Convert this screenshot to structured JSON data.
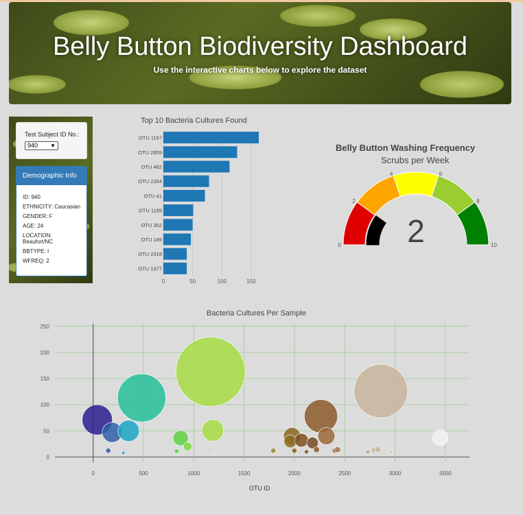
{
  "header": {
    "title": "Belly Button Biodiversity Dashboard",
    "subtitle": "Use the interactive charts below to explore the dataset"
  },
  "selector": {
    "label": "Test Subject ID No.:",
    "value": "940"
  },
  "demographics": {
    "heading": "Demographic Info",
    "rows": [
      "ID: 940",
      "ETHNICITY: Caucasian",
      "GENDER: F",
      "AGE: 24",
      "LOCATION: Beaufort/NC",
      "BBTYPE: I",
      "WFREQ: 2"
    ]
  },
  "colors": {
    "bar": "#1f77b4",
    "panel_header": "#337ab7"
  },
  "gauge": {
    "title": "Belly Button Washing Frequency",
    "subtitle": "Scrubs per Week",
    "value": "2",
    "ticks": [
      "0",
      "2",
      "4",
      "6",
      "8",
      "10"
    ],
    "segment_colors": [
      "#e00000",
      "#ffa500",
      "#ffff00",
      "#9acd32",
      "#008000"
    ]
  },
  "chart_data": [
    {
      "type": "bar",
      "orientation": "horizontal",
      "title": "Top 10 Bacteria Cultures Found",
      "categories": [
        "OTU 1167",
        "OTU 2859",
        "OTU 482",
        "OTU 2264",
        "OTU 41",
        "OTU 1189",
        "OTU 352",
        "OTU 189",
        "OTU 2318",
        "OTU 1977"
      ],
      "values": [
        163,
        126,
        113,
        78,
        71,
        51,
        50,
        47,
        40,
        40
      ],
      "xticks": [
        "0",
        "50",
        "100",
        "150"
      ],
      "xlim": [
        0,
        170
      ]
    },
    {
      "type": "scatter",
      "title": "Bacteria Cultures Per Sample",
      "xlabel": "OTU ID",
      "xticks": [
        "0",
        "500",
        "1000",
        "1500",
        "2000",
        "2500",
        "3000",
        "3500"
      ],
      "yticks": [
        "0",
        "50",
        "100",
        "150",
        "200",
        "250"
      ],
      "xlim": [
        -380,
        3740
      ],
      "ylim": [
        -10,
        255
      ],
      "points": [
        {
          "x": 41,
          "y": 71,
          "c": "#2a1f8f"
        },
        {
          "x": 189,
          "y": 47,
          "c": "#2f5fa8"
        },
        {
          "x": 352,
          "y": 50,
          "c": "#1ca6c4"
        },
        {
          "x": 482,
          "y": 113,
          "c": "#25c09a"
        },
        {
          "x": 1167,
          "y": 163,
          "c": "#a8dc45"
        },
        {
          "x": 1189,
          "y": 51,
          "c": "#a8dc45"
        },
        {
          "x": 870,
          "y": 36,
          "c": "#5fd144"
        },
        {
          "x": 940,
          "y": 20,
          "c": "#7ed83e"
        },
        {
          "x": 2264,
          "y": 78,
          "c": "#8b5a2b"
        },
        {
          "x": 2318,
          "y": 40,
          "c": "#9c6a3a"
        },
        {
          "x": 1977,
          "y": 40,
          "c": "#8e6420"
        },
        {
          "x": 1960,
          "y": 30,
          "c": "#8b6b1e"
        },
        {
          "x": 2070,
          "y": 32,
          "c": "#7f4f21"
        },
        {
          "x": 2180,
          "y": 27,
          "c": "#7a4a22"
        },
        {
          "x": 2859,
          "y": 126,
          "c": "#c8b49c"
        },
        {
          "x": 3450,
          "y": 37,
          "c": "#f2f2f2"
        },
        {
          "x": 150,
          "y": 12,
          "c": "#2f5fa8"
        },
        {
          "x": 300,
          "y": 8,
          "c": "#1ca6c4"
        },
        {
          "x": 830,
          "y": 11,
          "c": "#5fd144"
        },
        {
          "x": 1200,
          "y": 6,
          "c": "#c6e27a"
        },
        {
          "x": 1790,
          "y": 12,
          "c": "#9b8a30"
        },
        {
          "x": 2000,
          "y": 12,
          "c": "#8e6420"
        },
        {
          "x": 2120,
          "y": 10,
          "c": "#7f4f21"
        },
        {
          "x": 2220,
          "y": 14,
          "c": "#8b5a2b"
        },
        {
          "x": 2400,
          "y": 12,
          "c": "#a0754a"
        },
        {
          "x": 2430,
          "y": 14,
          "c": "#a0754a"
        },
        {
          "x": 2730,
          "y": 10,
          "c": "#c0a582"
        },
        {
          "x": 2790,
          "y": 13,
          "c": "#c8b49c"
        },
        {
          "x": 2830,
          "y": 14,
          "c": "#c8b49c"
        },
        {
          "x": 2960,
          "y": 10,
          "c": "#d9cbb9"
        }
      ],
      "sizes": [
        71,
        47,
        50,
        113,
        163,
        51,
        36,
        20,
        78,
        40,
        40,
        30,
        32,
        27,
        126,
        37,
        12,
        8,
        11,
        6,
        12,
        12,
        10,
        14,
        12,
        14,
        10,
        13,
        14,
        10
      ]
    }
  ]
}
